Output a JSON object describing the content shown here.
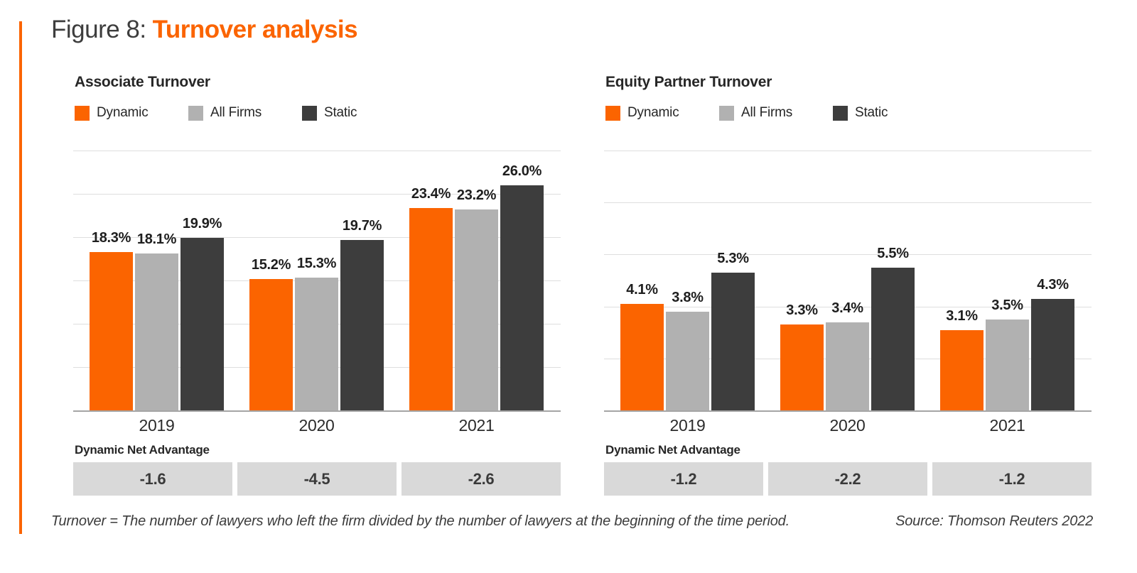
{
  "figure": {
    "label": "Figure 8:",
    "title": "Turnover analysis"
  },
  "colors": {
    "accent_orange": "#FB6400",
    "series_gray": "#B1B1B1",
    "series_dark": "#3D3D3D",
    "net_box_bg": "#D9D9D9",
    "gridline": "#DEDEDE",
    "axis": "#A5A5A5"
  },
  "footnote": "Turnover = The number of lawyers who left the firm divided by the number of lawyers at the beginning of the time period.",
  "source": "Source: Thomson Reuters 2022",
  "chart_data": [
    {
      "type": "bar",
      "title": "Associate Turnover",
      "categories": [
        "2019",
        "2020",
        "2021"
      ],
      "series": [
        {
          "name": "Dynamic",
          "color": "#FB6400",
          "values": [
            18.3,
            15.2,
            23.4
          ]
        },
        {
          "name": "All Firms",
          "color": "#B1B1B1",
          "values": [
            18.1,
            15.3,
            23.2
          ]
        },
        {
          "name": "Static",
          "color": "#3D3D3D",
          "values": [
            19.9,
            19.7,
            26.0
          ]
        }
      ],
      "value_suffix": "%",
      "ylim": [
        0,
        30
      ],
      "grid_step": 5,
      "grid": true,
      "legend_position": "top",
      "net_advantage": {
        "label": "Dynamic Net Advantage",
        "values": [
          "-1.6",
          "-4.5",
          "-2.6"
        ]
      }
    },
    {
      "type": "bar",
      "title": "Equity Partner Turnover",
      "categories": [
        "2019",
        "2020",
        "2021"
      ],
      "series": [
        {
          "name": "Dynamic",
          "color": "#FB6400",
          "values": [
            4.1,
            3.3,
            3.1
          ]
        },
        {
          "name": "All Firms",
          "color": "#B1B1B1",
          "values": [
            3.8,
            3.4,
            3.5
          ]
        },
        {
          "name": "Static",
          "color": "#3D3D3D",
          "values": [
            5.3,
            5.5,
            4.3
          ]
        }
      ],
      "value_suffix": "%",
      "ylim": [
        0,
        10
      ],
      "grid_step": 2,
      "grid": true,
      "legend_position": "top",
      "net_advantage": {
        "label": "Dynamic Net Advantage",
        "values": [
          "-1.2",
          "-2.2",
          "-1.2"
        ]
      }
    }
  ]
}
